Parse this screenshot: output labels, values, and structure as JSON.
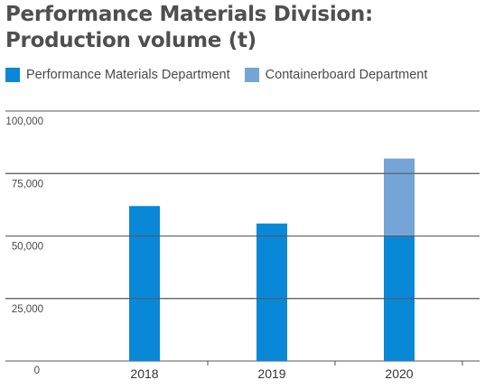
{
  "chart_data": {
    "type": "bar",
    "stacked": true,
    "title_lines": [
      "Performance Materials Division:",
      "Production volume (t)"
    ],
    "categories": [
      "2018",
      "2019",
      "2020"
    ],
    "series": [
      {
        "name": "Performance Materials Department",
        "values": [
          62000,
          55000,
          50000
        ],
        "color": "#0a88d8"
      },
      {
        "name": "Containerboard Department",
        "values": [
          0,
          0,
          31000
        ],
        "color": "#74a5d6"
      }
    ],
    "ylim": [
      0,
      100000
    ],
    "yticks": [
      0,
      25000,
      50000,
      75000,
      100000
    ],
    "ytick_labels": [
      "0",
      "25,000",
      "50,000",
      "75,000",
      "100,000"
    ],
    "grid": true,
    "legend_position": "top-left"
  }
}
